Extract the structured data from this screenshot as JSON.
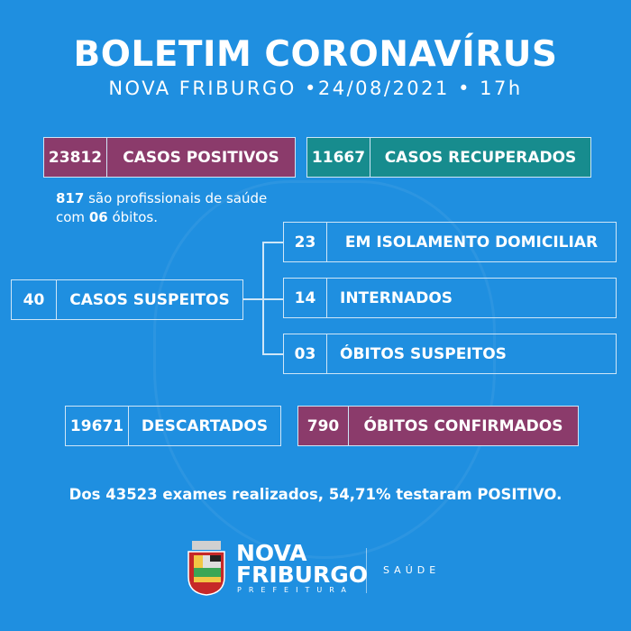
{
  "header": {
    "title": "BOLETIM CORONAVÍRUS",
    "subtitle": "NOVA FRIBURGO •24/08/2021 • 17h"
  },
  "positivos": {
    "value": "23812",
    "label": "CASOS POSITIVOS",
    "color": "#8b3b6b"
  },
  "recuperados": {
    "value": "11667",
    "label": "CASOS RECUPERADOS",
    "color": "#178c8e"
  },
  "note": {
    "num1": "817",
    "text1": " são profissionais de saúde",
    "text2": "com ",
    "num2": "06",
    "text3": " óbitos."
  },
  "suspeitos": {
    "value": "40",
    "label": "CASOS SUSPEITOS"
  },
  "isolamento": {
    "value": "23",
    "label": "EM ISOLAMENTO DOMICILIAR"
  },
  "internados": {
    "value": "14",
    "label": "INTERNADOS"
  },
  "obitos_suspeitos": {
    "value": "03",
    "label": "ÓBITOS SUSPEITOS"
  },
  "descartados": {
    "value": "19671",
    "label": "DESCARTADOS"
  },
  "obitos_confirmados": {
    "value": "790",
    "label": "ÓBITOS CONFIRMADOS",
    "color": "#8b3b6b"
  },
  "footer": {
    "summary": "Dos 43523 exames realizados, 54,71% testaram POSITIVO."
  },
  "logo": {
    "line1": "NOVA",
    "line2": "FRIBURGO",
    "line3": "PREFEITURA",
    "dept": "SAÚDE"
  },
  "background_color": "#1f8fe0"
}
